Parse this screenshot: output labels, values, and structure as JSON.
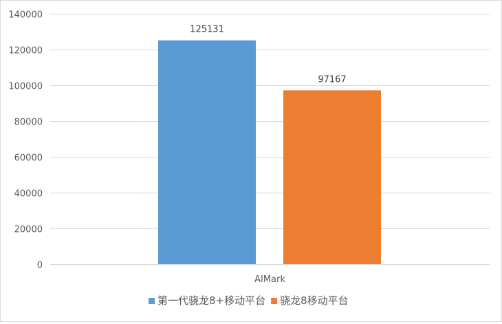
{
  "chart_data": {
    "type": "bar",
    "title": "",
    "xlabel": "",
    "ylabel": "",
    "categories": [
      "AIMark"
    ],
    "series": [
      {
        "name": "第一代骁龙8+移动平台",
        "values": [
          125131
        ],
        "color": "#5b9bd5"
      },
      {
        "name": "骁龙8移动平台",
        "values": [
          97167
        ],
        "color": "#ed7d31"
      }
    ],
    "ylim": [
      0,
      140000
    ],
    "yticks": [
      0,
      20000,
      40000,
      60000,
      80000,
      100000,
      120000,
      140000
    ],
    "grid": true,
    "legend": "bottom",
    "data_labels": true
  }
}
